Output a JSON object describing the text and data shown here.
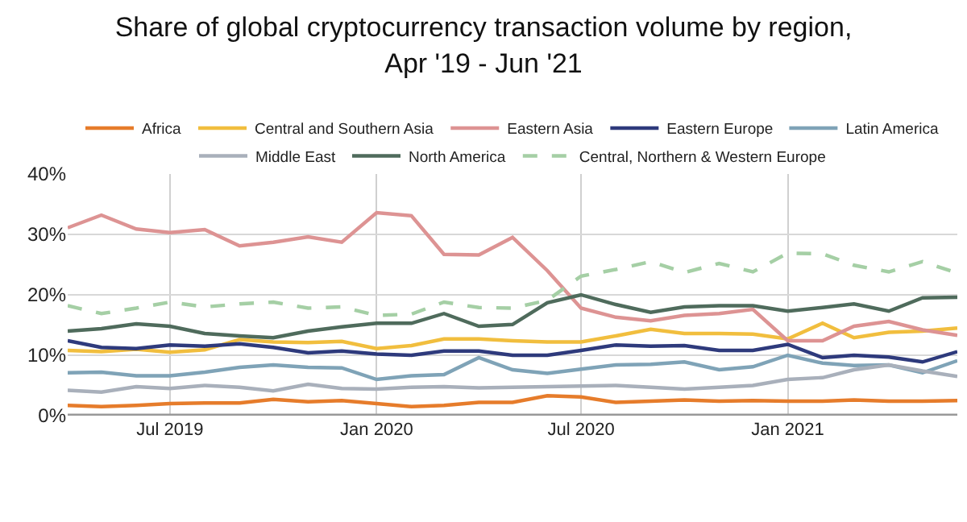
{
  "chart_data": {
    "type": "line",
    "title": "Share of global cryptocurrency transaction volume by region,\nApr '19 - Jun '21",
    "x": [
      "2019-04",
      "2019-05",
      "2019-06",
      "2019-07",
      "2019-08",
      "2019-09",
      "2019-10",
      "2019-11",
      "2019-12",
      "2020-01",
      "2020-02",
      "2020-03",
      "2020-04",
      "2020-05",
      "2020-06",
      "2020-07",
      "2020-08",
      "2020-09",
      "2020-10",
      "2020-11",
      "2020-12",
      "2021-01",
      "2021-02",
      "2021-03",
      "2021-04",
      "2021-05",
      "2021-06"
    ],
    "series": [
      {
        "name": "Africa",
        "color": "#e67c2b",
        "values": [
          1.7,
          1.5,
          1.7,
          2.0,
          2.1,
          2.1,
          2.7,
          2.3,
          2.5,
          2.0,
          1.5,
          1.7,
          2.2,
          2.2,
          3.3,
          3.1,
          2.2,
          2.4,
          2.6,
          2.4,
          2.5,
          2.4,
          2.4,
          2.6,
          2.4,
          2.4,
          2.5
        ]
      },
      {
        "name": "Central and Southern Asia",
        "color": "#f1be3e",
        "values": [
          10.8,
          10.6,
          11.0,
          10.5,
          10.9,
          12.6,
          12.2,
          12.1,
          12.3,
          11.1,
          11.6,
          12.7,
          12.7,
          12.4,
          12.2,
          12.2,
          13.2,
          14.3,
          13.6,
          13.6,
          13.5,
          12.7,
          15.3,
          12.9,
          13.8,
          14.0,
          14.5
        ]
      },
      {
        "name": "Eastern Asia",
        "color": "#dd9393",
        "values": [
          31.1,
          33.2,
          30.9,
          30.3,
          30.8,
          28.1,
          28.7,
          29.6,
          28.7,
          33.6,
          33.1,
          26.7,
          26.6,
          29.5,
          24.0,
          17.8,
          16.3,
          15.7,
          16.6,
          16.9,
          17.6,
          12.4,
          12.4,
          14.8,
          15.6,
          14.2,
          13.3
        ]
      },
      {
        "name": "Eastern Europe",
        "color": "#2e3a7c",
        "values": [
          12.4,
          11.3,
          11.1,
          11.7,
          11.5,
          11.9,
          11.3,
          10.4,
          10.7,
          10.2,
          10.0,
          10.7,
          10.7,
          10.0,
          10.0,
          10.8,
          11.7,
          11.5,
          11.6,
          10.8,
          10.8,
          11.8,
          9.6,
          10.0,
          9.7,
          8.9,
          10.6
        ]
      },
      {
        "name": "Latin America",
        "color": "#7fa3b7",
        "values": [
          7.1,
          7.2,
          6.6,
          6.6,
          7.2,
          8.0,
          8.4,
          8.0,
          7.9,
          6.0,
          6.6,
          6.8,
          9.6,
          7.6,
          7.0,
          7.7,
          8.4,
          8.5,
          8.9,
          7.6,
          8.1,
          10.0,
          8.7,
          8.3,
          8.4,
          7.1,
          9.1
        ]
      },
      {
        "name": "Middle East",
        "color": "#a9b0bb",
        "values": [
          4.2,
          3.9,
          4.8,
          4.5,
          5.0,
          4.7,
          4.1,
          5.2,
          4.5,
          4.4,
          4.7,
          4.8,
          4.6,
          4.7,
          4.8,
          4.9,
          5.0,
          4.7,
          4.4,
          4.7,
          5.0,
          6.0,
          6.3,
          7.6,
          8.4,
          7.4,
          6.5
        ]
      },
      {
        "name": "North America",
        "color": "#4f6b5c",
        "values": [
          14.0,
          14.4,
          15.2,
          14.8,
          13.6,
          13.2,
          12.9,
          14.0,
          14.7,
          15.3,
          15.3,
          16.9,
          14.8,
          15.1,
          18.7,
          20.0,
          18.4,
          17.1,
          18.0,
          18.2,
          18.2,
          17.3,
          17.9,
          18.5,
          17.3,
          19.5,
          19.6
        ]
      },
      {
        "name": "Central, Northern & Western Europe",
        "color": "#a5cfa5",
        "line_style": "dashed",
        "values": [
          18.2,
          16.9,
          17.8,
          18.8,
          18.0,
          18.5,
          18.8,
          17.8,
          18.0,
          16.6,
          16.8,
          18.8,
          17.9,
          17.8,
          19.1,
          23.1,
          24.2,
          25.5,
          23.7,
          25.2,
          23.8,
          26.9,
          26.8,
          24.9,
          23.8,
          25.5,
          23.6
        ]
      }
    ],
    "xlim": [
      "2019-04",
      "2021-06"
    ],
    "xticks": [
      {
        "value": "2019-07",
        "label": "Jul 2019"
      },
      {
        "value": "2020-01",
        "label": "Jan 2020"
      },
      {
        "value": "2020-07",
        "label": "Jul 2020"
      },
      {
        "value": "2021-01",
        "label": "Jan 2021"
      }
    ],
    "ylim": [
      0,
      40
    ],
    "yticks": [
      {
        "value": 0,
        "label": "0%"
      },
      {
        "value": 10,
        "label": "10%"
      },
      {
        "value": 20,
        "label": "20%"
      },
      {
        "value": 30,
        "label": "30%"
      },
      {
        "value": 40,
        "label": "40%"
      }
    ],
    "grid": true,
    "legend": "top",
    "marker": "none",
    "line_style": "solid"
  }
}
